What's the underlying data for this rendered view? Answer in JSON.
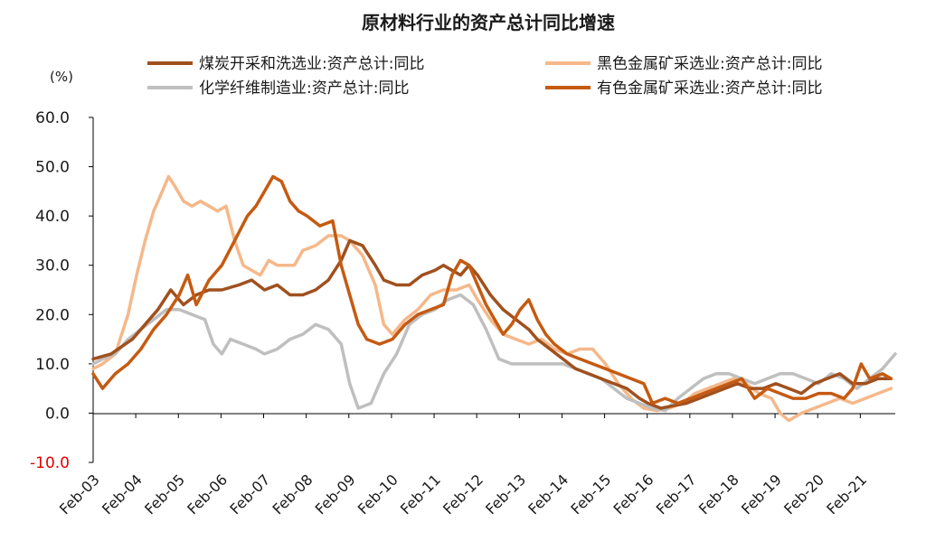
{
  "chart_data": {
    "type": "line",
    "title": "原材料行业的资产总计同比增速",
    "ylabel": "(%)",
    "ylim": [
      -10,
      60
    ],
    "ytick_labels": [
      "60.0",
      "50.0",
      "40.0",
      "30.0",
      "20.0",
      "10.0",
      "0.0",
      "-10.0"
    ],
    "xtick_labels": [
      "Feb-03",
      "Feb-04",
      "Feb-05",
      "Feb-06",
      "Feb-07",
      "Feb-08",
      "Feb-09",
      "Feb-10",
      "Feb-11",
      "Feb-12",
      "Feb-13",
      "Feb-14",
      "Feb-15",
      "Feb-16",
      "Feb-17",
      "Feb-18",
      "Feb-19",
      "Feb-20",
      "Feb-21"
    ],
    "grid": false,
    "legend_position": "top",
    "series": [
      {
        "name": "煤炭开采和洗选业:资产总计:同比",
        "color": "#a0501e",
        "width": 3.5,
        "points": [
          [
            2003.08,
            11
          ],
          [
            2003.5,
            12
          ],
          [
            2004.0,
            15
          ],
          [
            2004.3,
            18
          ],
          [
            2004.6,
            21
          ],
          [
            2004.9,
            25
          ],
          [
            2005.2,
            22
          ],
          [
            2005.5,
            24
          ],
          [
            2005.8,
            25
          ],
          [
            2006.1,
            25
          ],
          [
            2006.5,
            26
          ],
          [
            2006.8,
            27
          ],
          [
            2007.1,
            25
          ],
          [
            2007.4,
            26
          ],
          [
            2007.7,
            24
          ],
          [
            2008.0,
            24
          ],
          [
            2008.3,
            25
          ],
          [
            2008.6,
            27
          ],
          [
            2008.9,
            31
          ],
          [
            2009.1,
            35
          ],
          [
            2009.4,
            34
          ],
          [
            2009.7,
            30
          ],
          [
            2009.9,
            27
          ],
          [
            2010.2,
            26
          ],
          [
            2010.5,
            26
          ],
          [
            2010.8,
            28
          ],
          [
            2011.1,
            29
          ],
          [
            2011.3,
            30
          ],
          [
            2011.5,
            29
          ],
          [
            2011.7,
            28
          ],
          [
            2011.9,
            30
          ],
          [
            2012.1,
            28
          ],
          [
            2012.4,
            24
          ],
          [
            2012.7,
            21
          ],
          [
            2013.0,
            19
          ],
          [
            2013.3,
            17
          ],
          [
            2013.5,
            15
          ],
          [
            2013.8,
            13
          ],
          [
            2014.1,
            11
          ],
          [
            2014.4,
            9
          ],
          [
            2014.7,
            8
          ],
          [
            2015.0,
            7
          ],
          [
            2015.3,
            6
          ],
          [
            2015.6,
            5
          ],
          [
            2015.9,
            3
          ],
          [
            2016.1,
            2
          ],
          [
            2016.4,
            1
          ],
          [
            2016.7,
            1.5
          ],
          [
            2017.0,
            2
          ],
          [
            2017.3,
            3
          ],
          [
            2017.6,
            4
          ],
          [
            2017.9,
            5
          ],
          [
            2018.2,
            6
          ],
          [
            2018.5,
            5
          ],
          [
            2018.8,
            5
          ],
          [
            2019.1,
            6
          ],
          [
            2019.4,
            5
          ],
          [
            2019.7,
            4
          ],
          [
            2020.0,
            6
          ],
          [
            2020.3,
            7
          ],
          [
            2020.6,
            8
          ],
          [
            2020.9,
            6
          ],
          [
            2021.2,
            6
          ],
          [
            2021.5,
            7
          ],
          [
            2021.8,
            7
          ]
        ]
      },
      {
        "name": "黑色金属矿采选业:资产总计:同比",
        "color": "#f5b88a",
        "width": 3.5,
        "points": [
          [
            2003.08,
            9
          ],
          [
            2003.3,
            10
          ],
          [
            2003.6,
            12
          ],
          [
            2003.9,
            20
          ],
          [
            2004.1,
            28
          ],
          [
            2004.3,
            35
          ],
          [
            2004.5,
            41
          ],
          [
            2004.7,
            45
          ],
          [
            2004.85,
            48
          ],
          [
            2005.0,
            46
          ],
          [
            2005.2,
            43
          ],
          [
            2005.4,
            42
          ],
          [
            2005.6,
            43
          ],
          [
            2005.8,
            42
          ],
          [
            2006.0,
            41
          ],
          [
            2006.2,
            42
          ],
          [
            2006.4,
            35
          ],
          [
            2006.6,
            30
          ],
          [
            2006.8,
            29
          ],
          [
            2007.0,
            28
          ],
          [
            2007.2,
            31
          ],
          [
            2007.4,
            30
          ],
          [
            2007.6,
            30
          ],
          [
            2007.8,
            30
          ],
          [
            2008.0,
            33
          ],
          [
            2008.3,
            34
          ],
          [
            2008.6,
            36
          ],
          [
            2008.9,
            36
          ],
          [
            2009.1,
            35
          ],
          [
            2009.4,
            32
          ],
          [
            2009.7,
            26
          ],
          [
            2009.9,
            18
          ],
          [
            2010.1,
            16
          ],
          [
            2010.4,
            19
          ],
          [
            2010.7,
            21
          ],
          [
            2011.0,
            24
          ],
          [
            2011.3,
            25
          ],
          [
            2011.6,
            25
          ],
          [
            2011.9,
            26
          ],
          [
            2012.1,
            23
          ],
          [
            2012.4,
            19
          ],
          [
            2012.7,
            16
          ],
          [
            2013.0,
            15
          ],
          [
            2013.3,
            14
          ],
          [
            2013.6,
            15
          ],
          [
            2013.9,
            13
          ],
          [
            2014.2,
            12
          ],
          [
            2014.5,
            13
          ],
          [
            2014.8,
            13
          ],
          [
            2015.1,
            10
          ],
          [
            2015.4,
            6
          ],
          [
            2015.7,
            3
          ],
          [
            2016.0,
            1
          ],
          [
            2016.3,
            0.5
          ],
          [
            2016.6,
            1
          ],
          [
            2016.9,
            2
          ],
          [
            2017.2,
            4
          ],
          [
            2017.5,
            5
          ],
          [
            2017.8,
            6
          ],
          [
            2018.1,
            7
          ],
          [
            2018.4,
            6
          ],
          [
            2018.7,
            4
          ],
          [
            2019.0,
            3
          ],
          [
            2019.2,
            0
          ],
          [
            2019.4,
            -1.5
          ],
          [
            2019.7,
            0
          ],
          [
            2020.0,
            1
          ],
          [
            2020.3,
            2
          ],
          [
            2020.6,
            3
          ],
          [
            2020.9,
            2
          ],
          [
            2021.2,
            3
          ],
          [
            2021.5,
            4
          ],
          [
            2021.8,
            5
          ]
        ]
      },
      {
        "name": "化学纤维制造业:资产总计:同比",
        "color": "#bfbfbf",
        "width": 3.5,
        "points": [
          [
            2003.08,
            10
          ],
          [
            2003.3,
            11
          ],
          [
            2003.6,
            12
          ],
          [
            2003.9,
            15
          ],
          [
            2004.2,
            17
          ],
          [
            2004.5,
            19
          ],
          [
            2004.8,
            21
          ],
          [
            2005.1,
            21
          ],
          [
            2005.4,
            20
          ],
          [
            2005.7,
            19
          ],
          [
            2005.9,
            14
          ],
          [
            2006.1,
            12
          ],
          [
            2006.3,
            15
          ],
          [
            2006.6,
            14
          ],
          [
            2006.9,
            13
          ],
          [
            2007.1,
            12
          ],
          [
            2007.4,
            13
          ],
          [
            2007.7,
            15
          ],
          [
            2008.0,
            16
          ],
          [
            2008.3,
            18
          ],
          [
            2008.6,
            17
          ],
          [
            2008.9,
            14
          ],
          [
            2009.1,
            6
          ],
          [
            2009.3,
            1
          ],
          [
            2009.6,
            2
          ],
          [
            2009.9,
            8
          ],
          [
            2010.2,
            12
          ],
          [
            2010.5,
            18
          ],
          [
            2010.8,
            20
          ],
          [
            2011.1,
            21
          ],
          [
            2011.4,
            23
          ],
          [
            2011.7,
            24
          ],
          [
            2012.0,
            22
          ],
          [
            2012.3,
            17
          ],
          [
            2012.6,
            11
          ],
          [
            2012.9,
            10
          ],
          [
            2013.2,
            10
          ],
          [
            2013.5,
            10
          ],
          [
            2013.8,
            10
          ],
          [
            2014.1,
            10
          ],
          [
            2014.4,
            9
          ],
          [
            2014.7,
            8
          ],
          [
            2015.0,
            7
          ],
          [
            2015.3,
            5
          ],
          [
            2015.6,
            3
          ],
          [
            2015.9,
            2
          ],
          [
            2016.2,
            1
          ],
          [
            2016.5,
            0.5
          ],
          [
            2016.8,
            3
          ],
          [
            2017.1,
            5
          ],
          [
            2017.4,
            7
          ],
          [
            2017.7,
            8
          ],
          [
            2018.0,
            8
          ],
          [
            2018.3,
            7
          ],
          [
            2018.6,
            6
          ],
          [
            2018.9,
            7
          ],
          [
            2019.2,
            8
          ],
          [
            2019.5,
            8
          ],
          [
            2019.8,
            7
          ],
          [
            2020.1,
            6
          ],
          [
            2020.4,
            8
          ],
          [
            2020.7,
            7
          ],
          [
            2021.0,
            5
          ],
          [
            2021.3,
            7
          ],
          [
            2021.6,
            9
          ],
          [
            2021.9,
            12
          ]
        ]
      },
      {
        "name": "有色金属矿采选业:资产总计:同比",
        "color": "#c55a11",
        "width": 3.5,
        "points": [
          [
            2003.08,
            8
          ],
          [
            2003.3,
            5
          ],
          [
            2003.6,
            8
          ],
          [
            2003.9,
            10
          ],
          [
            2004.2,
            13
          ],
          [
            2004.5,
            17
          ],
          [
            2004.8,
            20
          ],
          [
            2005.1,
            24
          ],
          [
            2005.3,
            28
          ],
          [
            2005.5,
            22
          ],
          [
            2005.8,
            27
          ],
          [
            2006.1,
            30
          ],
          [
            2006.4,
            35
          ],
          [
            2006.7,
            40
          ],
          [
            2006.9,
            42
          ],
          [
            2007.1,
            45
          ],
          [
            2007.3,
            48
          ],
          [
            2007.5,
            47
          ],
          [
            2007.7,
            43
          ],
          [
            2007.9,
            41
          ],
          [
            2008.1,
            40
          ],
          [
            2008.4,
            38
          ],
          [
            2008.7,
            39
          ],
          [
            2008.9,
            30
          ],
          [
            2009.1,
            24
          ],
          [
            2009.3,
            18
          ],
          [
            2009.5,
            15
          ],
          [
            2009.8,
            14
          ],
          [
            2010.1,
            15
          ],
          [
            2010.4,
            18
          ],
          [
            2010.7,
            20
          ],
          [
            2011.0,
            21
          ],
          [
            2011.3,
            22
          ],
          [
            2011.5,
            28
          ],
          [
            2011.7,
            31
          ],
          [
            2011.9,
            30
          ],
          [
            2012.1,
            26
          ],
          [
            2012.3,
            22
          ],
          [
            2012.5,
            19
          ],
          [
            2012.7,
            16
          ],
          [
            2012.9,
            18
          ],
          [
            2013.1,
            21
          ],
          [
            2013.3,
            23
          ],
          [
            2013.5,
            19
          ],
          [
            2013.7,
            16
          ],
          [
            2013.9,
            14
          ],
          [
            2014.2,
            12
          ],
          [
            2014.5,
            11
          ],
          [
            2014.8,
            10
          ],
          [
            2015.1,
            9
          ],
          [
            2015.4,
            8
          ],
          [
            2015.7,
            7
          ],
          [
            2016.0,
            6
          ],
          [
            2016.2,
            2
          ],
          [
            2016.5,
            3
          ],
          [
            2016.8,
            2
          ],
          [
            2017.1,
            3
          ],
          [
            2017.4,
            4
          ],
          [
            2017.7,
            5
          ],
          [
            2018.0,
            6
          ],
          [
            2018.3,
            7
          ],
          [
            2018.6,
            3
          ],
          [
            2018.9,
            5
          ],
          [
            2019.2,
            4
          ],
          [
            2019.5,
            3
          ],
          [
            2019.8,
            3
          ],
          [
            2020.1,
            4
          ],
          [
            2020.4,
            4
          ],
          [
            2020.7,
            3
          ],
          [
            2020.9,
            5
          ],
          [
            2021.1,
            10
          ],
          [
            2021.3,
            7
          ],
          [
            2021.6,
            8
          ],
          [
            2021.8,
            7
          ]
        ]
      }
    ]
  }
}
